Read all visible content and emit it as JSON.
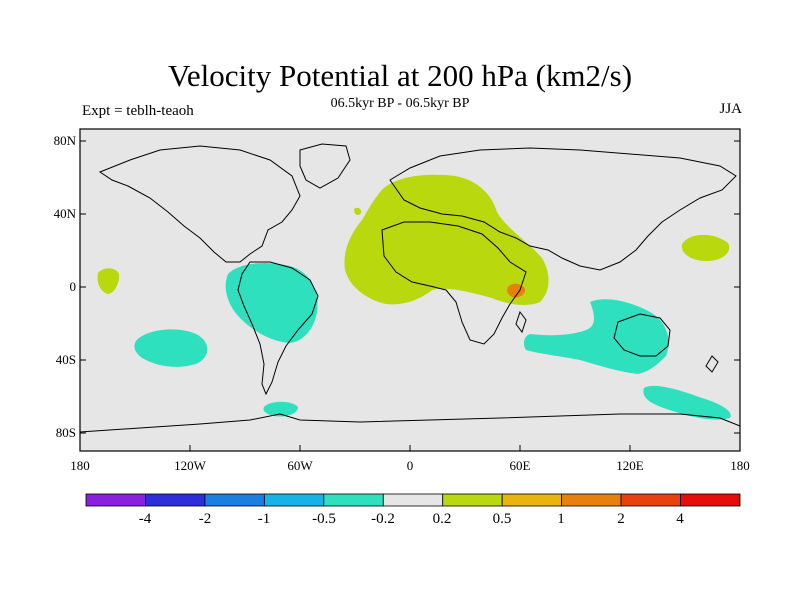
{
  "title": "Velocity Potential at 200 hPa (km2/s)",
  "subtitle": "06.5kyr BP - 06.5kyr BP",
  "experiment": "Expt = teblh-teaoh",
  "season": "JJA",
  "lat_ticks": [
    "80N",
    "40N",
    "0",
    "40S",
    "80S"
  ],
  "lon_ticks": [
    "180",
    "120W",
    "60W",
    "0",
    "60E",
    "120E",
    "180"
  ],
  "colorbar": {
    "labels": [
      "-4",
      "-2",
      "-1",
      "-0.5",
      "-0.2",
      "0.2",
      "0.5",
      "1",
      "2",
      "4"
    ],
    "colors": [
      "#8a1fe0",
      "#2d2ddc",
      "#1a7fe0",
      "#16b4e6",
      "#2fe0bf",
      "#e6e6e6",
      "#b9d80d",
      "#e8b40e",
      "#e8800e",
      "#e8400e",
      "#e80d0d"
    ]
  },
  "colors": {
    "background": "#e6e6e6",
    "negative": "#2fe0bf",
    "positive": "#b9d80d",
    "positive_high": "#e8800e",
    "coast": "#000000"
  }
}
